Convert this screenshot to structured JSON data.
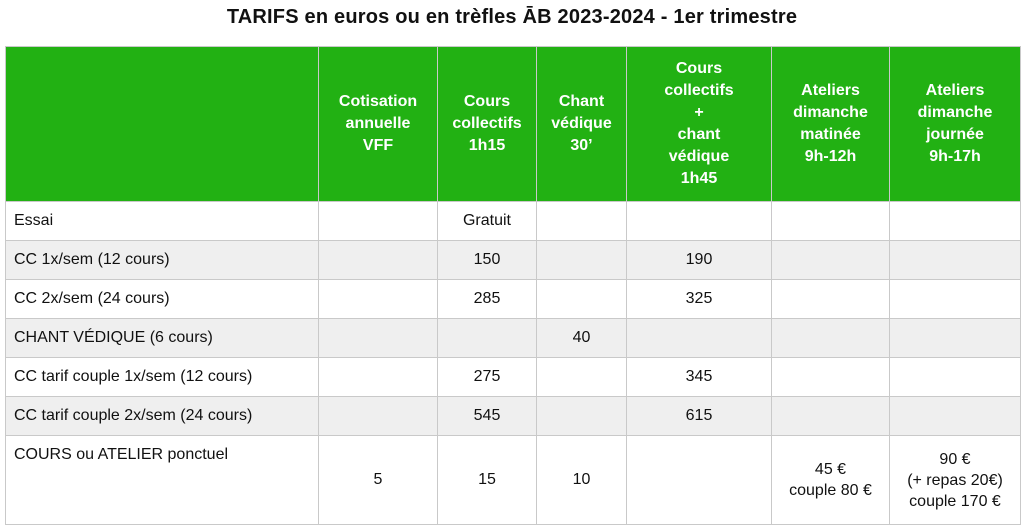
{
  "title": "TARIFS en euros ou en trèfles ĀB 2023-2024 - 1er trimestre",
  "header": {
    "corner": "",
    "columns": [
      [
        "Cotisation",
        "annuelle",
        "VFF"
      ],
      [
        "Cours",
        "collectifs",
        "1h15"
      ],
      [
        "Chant",
        "védique",
        "30’"
      ],
      [
        "Cours",
        "collectifs",
        "+",
        "chant",
        "védique",
        "1h45"
      ],
      [
        "Ateliers",
        "dimanche",
        "matinée",
        "9h-12h"
      ],
      [
        "Ateliers",
        "dimanche",
        "journée",
        "9h-17h"
      ]
    ]
  },
  "rows": [
    {
      "label": "Essai",
      "cells": [
        "",
        "Gratuit",
        "",
        "",
        "",
        ""
      ]
    },
    {
      "label": "CC 1x/sem (12 cours)",
      "cells": [
        "",
        "150",
        "",
        "190",
        "",
        ""
      ]
    },
    {
      "label": "CC 2x/sem (24 cours)",
      "cells": [
        "",
        "285",
        "",
        "325",
        "",
        ""
      ]
    },
    {
      "label": "CHANT VÉDIQUE (6 cours)",
      "cells": [
        "",
        "",
        "40",
        "",
        "",
        ""
      ]
    },
    {
      "label": "CC tarif couple 1x/sem (12 cours)",
      "cells": [
        "",
        "275",
        "",
        "345",
        "",
        ""
      ]
    },
    {
      "label": "CC tarif couple 2x/sem (24 cours)",
      "cells": [
        "",
        "545",
        "",
        "615",
        "",
        ""
      ]
    }
  ],
  "last_row": {
    "label": "COURS ou ATELIER ponctuel",
    "cells": [
      "5",
      "15",
      "10",
      ""
    ],
    "matinee": [
      "45 €",
      "couple 80 €"
    ],
    "journee": [
      "90 €",
      "(+ repas 20€)",
      "couple 170 €"
    ]
  }
}
